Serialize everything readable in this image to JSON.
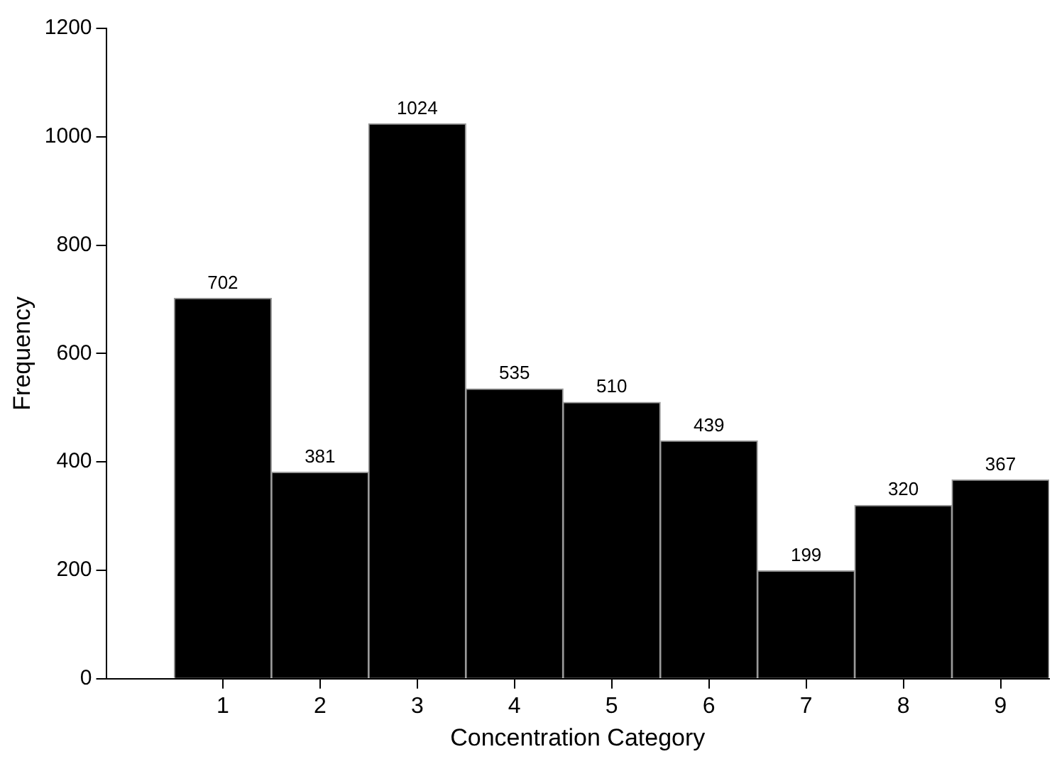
{
  "chart_data": {
    "type": "histogram",
    "xlabel": "Concentration Category",
    "ylabel": "Frequency",
    "bins": [
      0.5,
      1.5,
      2.5,
      3.5,
      4.5,
      5.5,
      6.5,
      7.5,
      8.5,
      9.5
    ],
    "values": [
      702,
      381,
      1024,
      535,
      510,
      439,
      199,
      320,
      367
    ],
    "color": "#000000",
    "xlim": [
      -0.2,
      9.5
    ],
    "xticks": [
      1,
      2,
      3,
      4,
      5,
      6,
      7,
      8,
      9
    ],
    "ylim": [
      0,
      1200
    ],
    "yticks": [
      0,
      200,
      400,
      600,
      800,
      1000,
      1200
    ],
    "grid": false,
    "legend": false,
    "data_labels": true
  }
}
